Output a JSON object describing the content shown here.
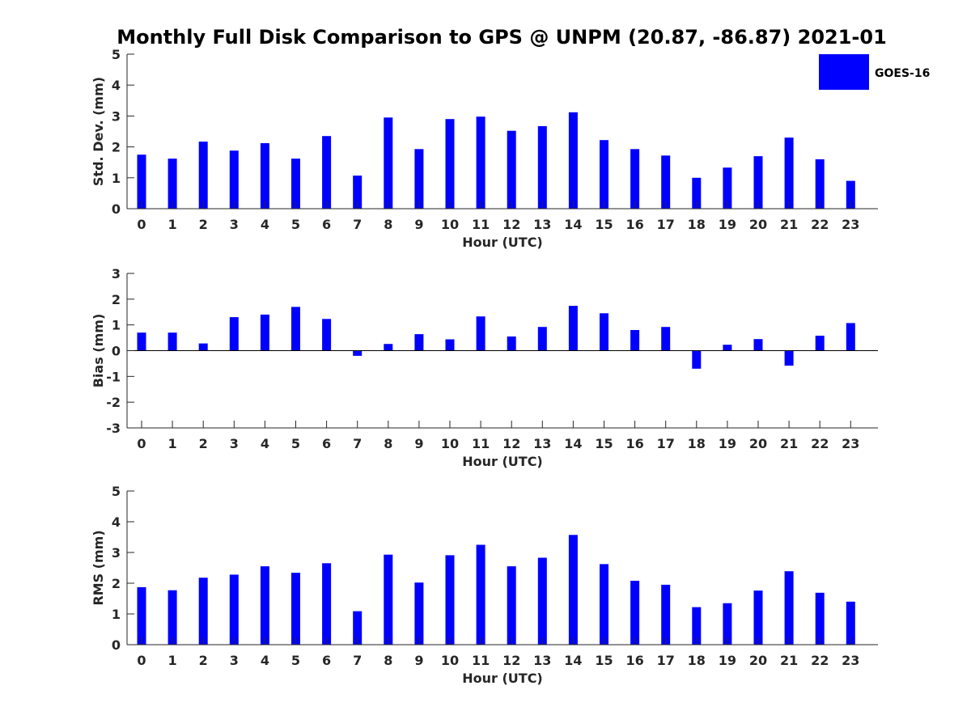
{
  "title": "Monthly Full Disk Comparison to GPS @ UNPM (20.87, -86.87) 2021-01",
  "legend": {
    "label": "GOES-16",
    "color": "#0000ff"
  },
  "colors": {
    "bar": "#0000ff",
    "axis": "#262626"
  },
  "chart_data": [
    {
      "type": "bar",
      "series": [
        {
          "name": "GOES-16",
          "values": [
            1.75,
            1.62,
            2.17,
            1.88,
            2.12,
            1.62,
            2.35,
            1.07,
            2.95,
            1.93,
            2.9,
            2.98,
            2.52,
            2.67,
            3.12,
            2.22,
            1.93,
            1.72,
            1.0,
            1.33,
            1.7,
            2.3,
            1.6,
            0.9
          ]
        }
      ],
      "categories": [
        "0",
        "1",
        "2",
        "3",
        "4",
        "5",
        "6",
        "7",
        "8",
        "9",
        "10",
        "11",
        "12",
        "13",
        "14",
        "15",
        "16",
        "17",
        "18",
        "19",
        "20",
        "21",
        "22",
        "23"
      ],
      "xlabel": "Hour (UTC)",
      "ylabel": "Std. Dev. (mm)",
      "ylim": [
        0,
        5
      ],
      "yticks": [
        "0",
        "1",
        "2",
        "3",
        "4",
        "5"
      ],
      "grid": false,
      "legend": "top-right"
    },
    {
      "type": "bar",
      "series": [
        {
          "name": "GOES-16",
          "values": [
            0.7,
            0.7,
            0.28,
            1.3,
            1.4,
            1.7,
            1.23,
            -0.2,
            0.26,
            0.64,
            0.44,
            1.33,
            0.55,
            0.92,
            1.74,
            1.45,
            0.8,
            0.92,
            -0.7,
            0.23,
            0.45,
            -0.58,
            0.58,
            1.07
          ]
        }
      ],
      "categories": [
        "0",
        "1",
        "2",
        "3",
        "4",
        "5",
        "6",
        "7",
        "8",
        "9",
        "10",
        "11",
        "12",
        "13",
        "14",
        "15",
        "16",
        "17",
        "18",
        "19",
        "20",
        "21",
        "22",
        "23"
      ],
      "xlabel": "Hour (UTC)",
      "ylabel": "Bias (mm)",
      "ylim": [
        -3,
        3
      ],
      "yticks": [
        "-3",
        "-2",
        "-1",
        "0",
        "1",
        "2",
        "3"
      ],
      "grid": false
    },
    {
      "type": "bar",
      "series": [
        {
          "name": "GOES-16",
          "values": [
            1.87,
            1.77,
            2.18,
            2.28,
            2.55,
            2.34,
            2.65,
            1.09,
            2.93,
            2.02,
            2.91,
            3.25,
            2.55,
            2.83,
            3.57,
            2.62,
            2.08,
            1.95,
            1.22,
            1.35,
            1.76,
            2.39,
            1.69,
            1.4
          ]
        }
      ],
      "categories": [
        "0",
        "1",
        "2",
        "3",
        "4",
        "5",
        "6",
        "7",
        "8",
        "9",
        "10",
        "11",
        "12",
        "13",
        "14",
        "15",
        "16",
        "17",
        "18",
        "19",
        "20",
        "21",
        "22",
        "23"
      ],
      "xlabel": "Hour (UTC)",
      "ylabel": "RMS (mm)",
      "ylim": [
        0,
        5
      ],
      "yticks": [
        "0",
        "1",
        "2",
        "3",
        "4",
        "5"
      ],
      "grid": false
    }
  ]
}
